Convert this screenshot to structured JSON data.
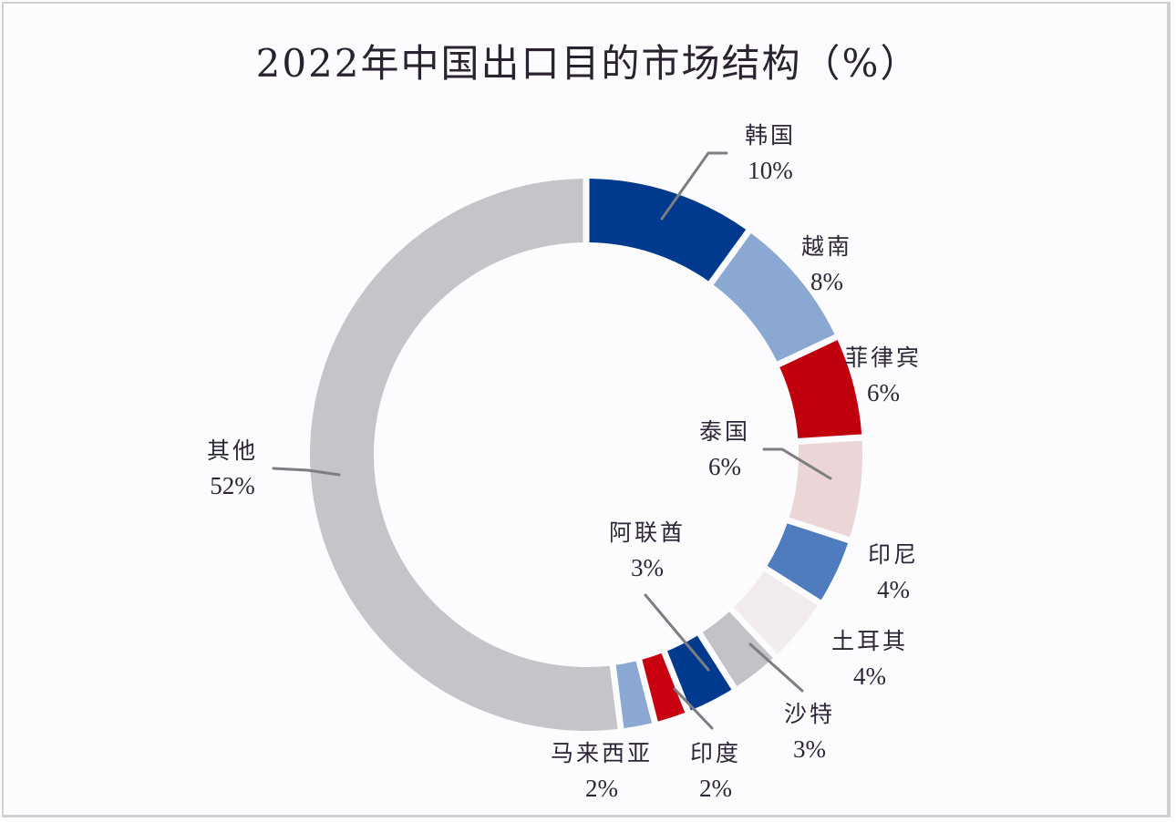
{
  "chart_data": {
    "type": "pie",
    "variant": "donut",
    "title": "2022年中国出口目的市场结构（%）",
    "unit": "%",
    "start_angle": "top (12 o'clock), clockwise",
    "categories": [
      "韩国",
      "越南",
      "菲律宾",
      "泰国",
      "印尼",
      "土耳其",
      "沙特",
      "阿联酋",
      "印度",
      "马来西亚",
      "其他"
    ],
    "values": [
      10,
      8,
      6,
      6,
      4,
      4,
      3,
      3,
      2,
      2,
      52
    ],
    "colors": [
      "#003a8f",
      "#8ba8d2",
      "#c0000c",
      "#ead6d6",
      "#4f7cbf",
      "#f2ecec",
      "#c1c3c6",
      "#003a8f",
      "#c8000f",
      "#8ba8d2",
      "#c4c5c8"
    ],
    "labels": [
      "10%",
      "8%",
      "6%",
      "6%",
      "4%",
      "4%",
      "3%",
      "3%",
      "2%",
      "2%",
      "52%"
    ],
    "legend": "none (data labels with leader lines)"
  },
  "title": "2022年中国出口目的市场结构（%）",
  "slices": [
    {
      "name": "韩国",
      "value_label": "10%"
    },
    {
      "name": "越南",
      "value_label": "8%"
    },
    {
      "name": "菲律宾",
      "value_label": "6%"
    },
    {
      "name": "泰国",
      "value_label": "6%"
    },
    {
      "name": "印尼",
      "value_label": "4%"
    },
    {
      "name": "土耳其",
      "value_label": "4%"
    },
    {
      "name": "沙特",
      "value_label": "3%"
    },
    {
      "name": "阿联酋",
      "value_label": "3%"
    },
    {
      "name": "印度",
      "value_label": "2%"
    },
    {
      "name": "马来西亚",
      "value_label": "2%"
    },
    {
      "name": "其他",
      "value_label": "52%"
    }
  ]
}
